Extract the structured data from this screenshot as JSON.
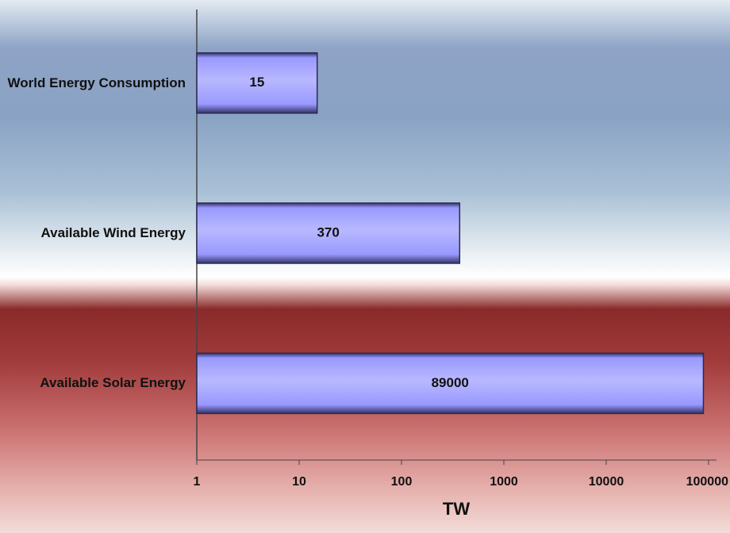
{
  "chart_data": {
    "type": "bar",
    "orientation": "horizontal",
    "categories": [
      "World Energy Consumption",
      "Available Wind Energy",
      "Available Solar Energy"
    ],
    "values": [
      15,
      370,
      89000
    ],
    "color": "#9999ff",
    "x_label": "TW",
    "log_scale": true,
    "xlim": [
      1,
      100000
    ],
    "xticks": [
      1,
      10,
      100,
      1000,
      10000,
      100000
    ]
  }
}
